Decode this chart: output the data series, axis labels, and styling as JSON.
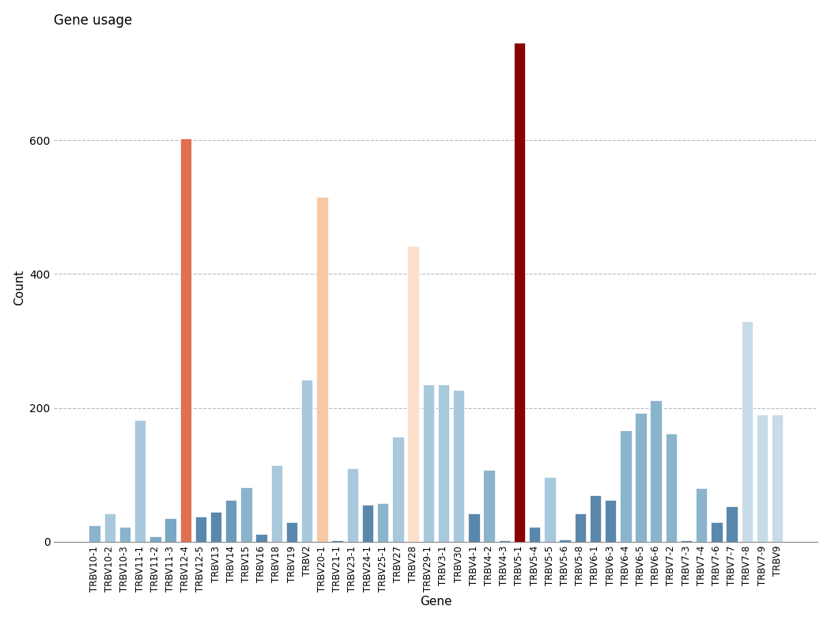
{
  "categories": [
    "TRBV10-1",
    "TRBV10-2",
    "TRBV10-3",
    "TRBV11-1",
    "TRBV11-2",
    "TRBV11-3",
    "TRBV12-4",
    "TRBV12-5",
    "TRBV13",
    "TRBV14",
    "TRBV15",
    "TRBV16",
    "TRBV18",
    "TRBV19",
    "TRBV2",
    "TRBV20-1",
    "TRBV21-1",
    "TRBV23-1",
    "TRBV24-1",
    "TRBV25-1",
    "TRBV27",
    "TRBV28",
    "TRBV29-1",
    "TRBV3-1",
    "TRBV30",
    "TRBV4-1",
    "TRBV4-2",
    "TRBV4-3",
    "TRBV5-1",
    "TRBV5-4",
    "TRBV5-5",
    "TRBV5-6",
    "TRBV5-8",
    "TRBV6-1",
    "TRBV6-3",
    "TRBV6-4",
    "TRBV6-5",
    "TRBV6-6",
    "TRBV7-2",
    "TRBV7-3",
    "TRBV7-4",
    "TRBV7-6",
    "TRBV7-7",
    "TRBV7-8",
    "TRBV7-9",
    "TRBV9"
  ],
  "values": [
    25,
    42,
    22,
    182,
    8,
    35,
    602,
    38,
    45,
    62,
    82,
    12,
    115,
    30,
    242,
    515,
    2,
    110,
    55,
    58,
    157,
    442,
    235,
    235,
    227,
    43,
    107,
    2,
    745,
    22,
    97,
    4,
    43,
    70,
    62,
    167,
    192,
    212,
    162,
    2,
    80,
    30,
    53,
    330,
    190,
    190
  ],
  "colors": [
    "#8ab4cc",
    "#a8c8dc",
    "#8ab4cc",
    "#a8c8dc",
    "#7aa8c4",
    "#7aa8c4",
    "#e07050",
    "#5a88ac",
    "#5a88ac",
    "#6a9abc",
    "#8ab4cc",
    "#5a88ac",
    "#a8c8dc",
    "#5a88ac",
    "#a8c8dc",
    "#f5c8a8",
    "#5a88ac",
    "#a8c8dc",
    "#5a88ac",
    "#8ab4cc",
    "#a8c8dc",
    "#fce0cc",
    "#a8c8dc",
    "#a8c8dc",
    "#a8c8dc",
    "#5a88ac",
    "#8ab4cc",
    "#5a88ac",
    "#8b0000",
    "#5a88ac",
    "#a8c8dc",
    "#5a88ac",
    "#5a88ac",
    "#5a88ac",
    "#5a88ac",
    "#8ab4cc",
    "#8ab4cc",
    "#8ab4cc",
    "#8ab4cc",
    "#5a88ac",
    "#8ab4cc",
    "#5a88ac",
    "#5a88ac",
    "#c8dce8",
    "#c8dce8",
    "#c8dce8"
  ],
  "title": "Gene usage",
  "xlabel": "Gene",
  "ylabel": "Count",
  "ylim": [
    0,
    760
  ],
  "yticks": [
    0,
    200,
    400,
    600
  ],
  "grid_color": "#bbbbbb"
}
